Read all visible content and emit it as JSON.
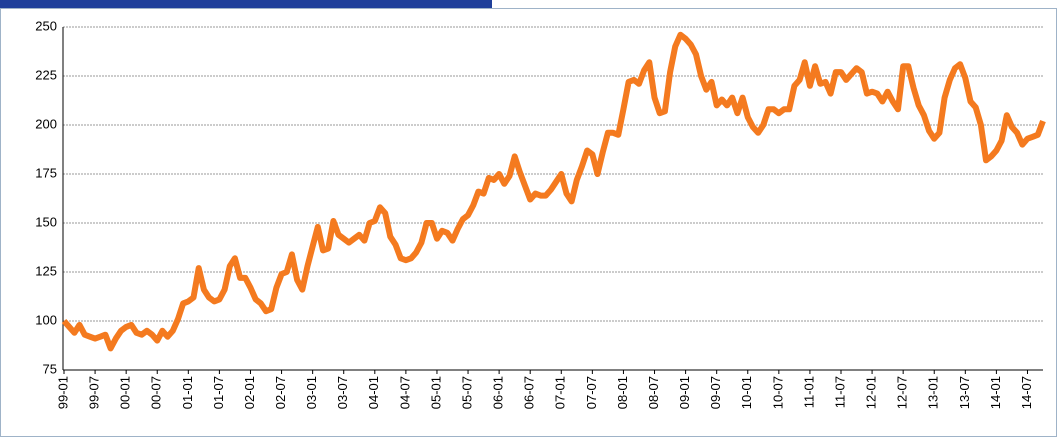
{
  "chart_data": {
    "type": "line",
    "color": "#f47a1f",
    "grid": true,
    "ylim": [
      75,
      250
    ],
    "yticks": [
      75,
      100,
      125,
      150,
      175,
      200,
      225,
      250
    ],
    "categories": [
      "99-01",
      null,
      null,
      null,
      null,
      null,
      "99-07",
      null,
      null,
      null,
      null,
      null,
      "00-01",
      null,
      null,
      null,
      null,
      null,
      "00-07",
      null,
      null,
      null,
      null,
      null,
      "01-01",
      null,
      null,
      null,
      null,
      null,
      "01-07",
      null,
      null,
      null,
      null,
      null,
      "02-01",
      null,
      null,
      null,
      null,
      null,
      "02-07",
      null,
      null,
      null,
      null,
      null,
      "03-01",
      null,
      null,
      null,
      null,
      null,
      "03-07",
      null,
      null,
      null,
      null,
      null,
      "04-01",
      null,
      null,
      null,
      null,
      null,
      "04-07",
      null,
      null,
      null,
      null,
      null,
      "05-01",
      null,
      null,
      null,
      null,
      null,
      "05-07",
      null,
      null,
      null,
      null,
      null,
      "06-01",
      null,
      null,
      null,
      null,
      null,
      "06-07",
      null,
      null,
      null,
      null,
      null,
      "07-01",
      null,
      null,
      null,
      null,
      null,
      "07-07",
      null,
      null,
      null,
      null,
      null,
      "08-01",
      null,
      null,
      null,
      null,
      null,
      "08-07",
      null,
      null,
      null,
      null,
      null,
      "09-01",
      null,
      null,
      null,
      null,
      null,
      "09-07",
      null,
      null,
      null,
      null,
      null,
      "10-01",
      null,
      null,
      null,
      null,
      null,
      "10-07",
      null,
      null,
      null,
      null,
      null,
      "11-01",
      null,
      null,
      null,
      null,
      null,
      "11-07",
      null,
      null,
      null,
      null,
      null,
      "12-01",
      null,
      null,
      null,
      null,
      null,
      "12-07",
      null,
      null,
      null,
      null,
      null,
      "13-01",
      null,
      null,
      null,
      null,
      null,
      "13-07",
      null,
      null,
      null,
      null,
      null,
      "14-01",
      null,
      null,
      null,
      null,
      null,
      "14-07",
      null,
      null,
      null
    ],
    "values": [
      100,
      97,
      94,
      98,
      93,
      92,
      91,
      92,
      93,
      86,
      91,
      95,
      97,
      98,
      94,
      93,
      95,
      93,
      90,
      95,
      92,
      95,
      101,
      109,
      110,
      112,
      127,
      116,
      112,
      110,
      111,
      116,
      128,
      132,
      122,
      122,
      117,
      111,
      109,
      105,
      106,
      117,
      124,
      125,
      134,
      121,
      116,
      128,
      138,
      148,
      136,
      137,
      151,
      144,
      142,
      140,
      142,
      144,
      141,
      150,
      151,
      158,
      155,
      143,
      139,
      132,
      131,
      132,
      135,
      140,
      150,
      150,
      142,
      146,
      145,
      141,
      147,
      152,
      154,
      159,
      166,
      165,
      173,
      172,
      175,
      170,
      174,
      184,
      176,
      169,
      162,
      165,
      164,
      164,
      167,
      171,
      175,
      165,
      161,
      172,
      179,
      187,
      185,
      175,
      186,
      196,
      196,
      195,
      208,
      222,
      223,
      221,
      228,
      232,
      214,
      206,
      207,
      227,
      240,
      246,
      244,
      241,
      236,
      225,
      218,
      222,
      210,
      213,
      210,
      214,
      206,
      214,
      204,
      199,
      196,
      200,
      208,
      208,
      206,
      208,
      208,
      220,
      223,
      232,
      220,
      230,
      221,
      222,
      216,
      227,
      227,
      223,
      226,
      229,
      227,
      216,
      217,
      216,
      212,
      217,
      212,
      208,
      230,
      230,
      219,
      210,
      205,
      197,
      193,
      196,
      214,
      223,
      229,
      231,
      224,
      212,
      209,
      200,
      182,
      184,
      187,
      192,
      205,
      199,
      196,
      190,
      193,
      194,
      195,
      202
    ]
  }
}
